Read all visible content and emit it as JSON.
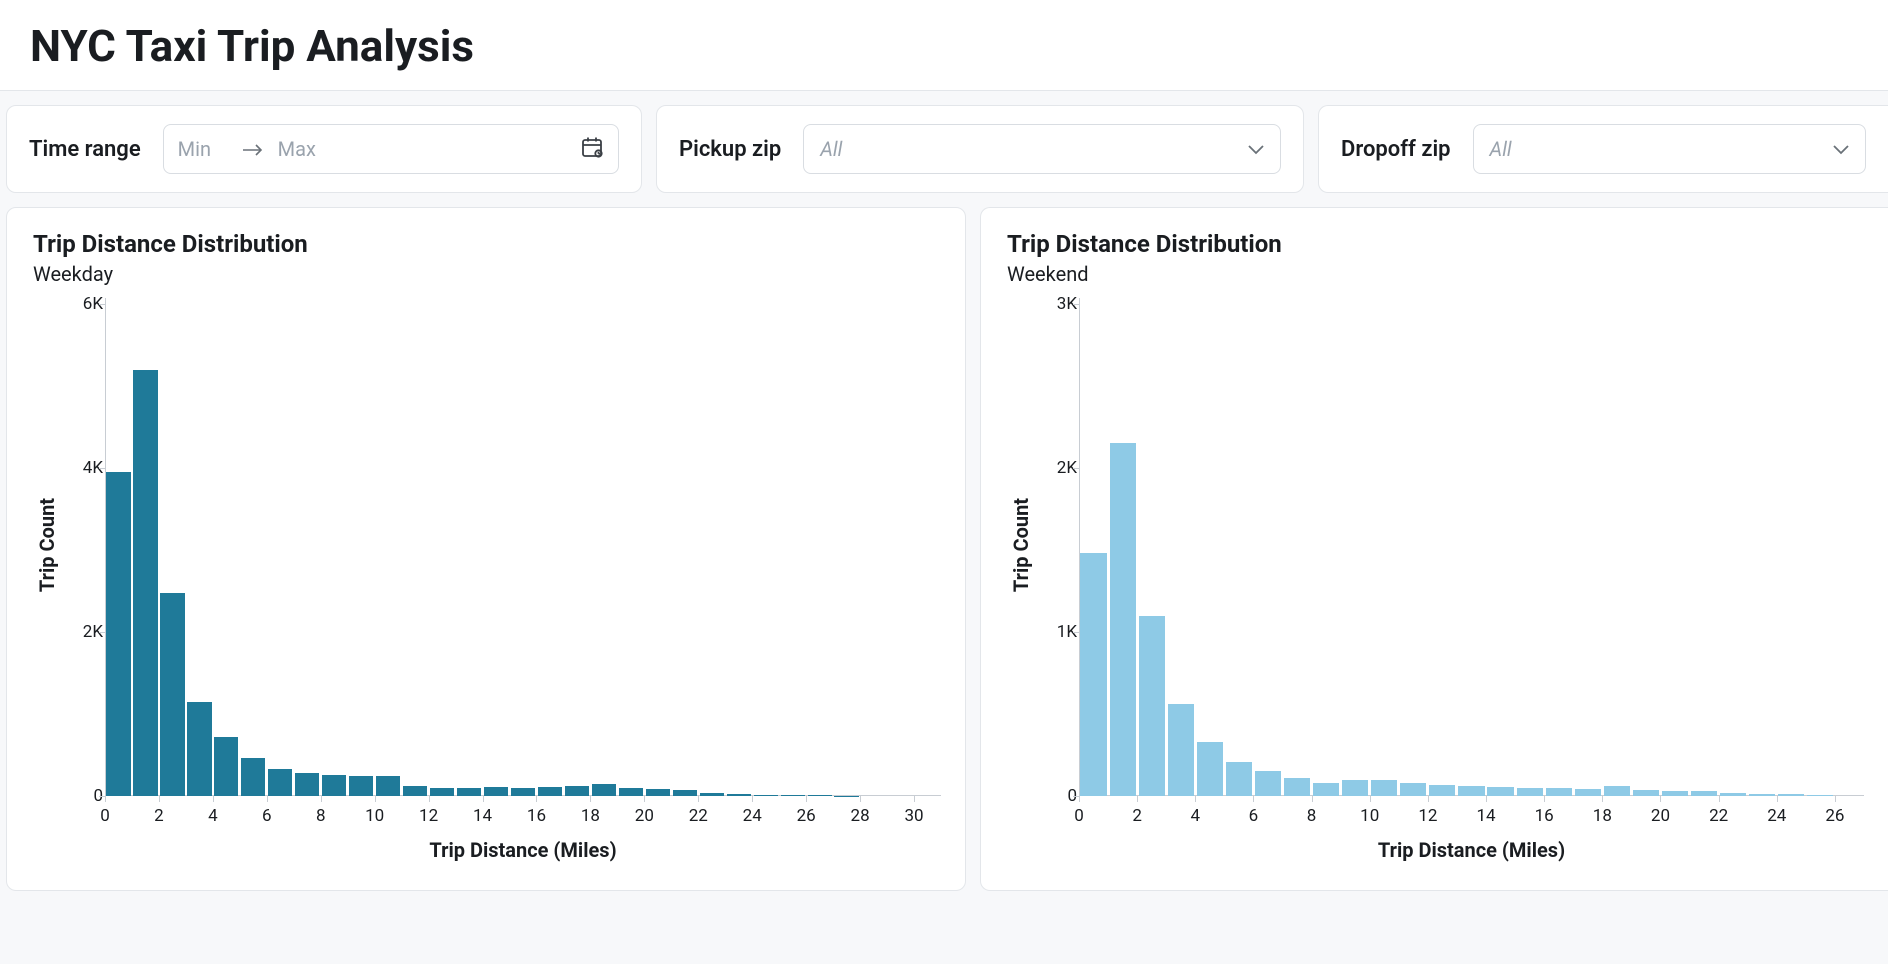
{
  "title": "NYC Taxi Trip Analysis",
  "filters": {
    "time_range": {
      "label": "Time range",
      "min_placeholder": "Min",
      "max_placeholder": "Max"
    },
    "pickup_zip": {
      "label": "Pickup zip",
      "placeholder": "All"
    },
    "dropoff_zip": {
      "label": "Dropoff zip",
      "placeholder": "All"
    }
  },
  "charts": [
    {
      "id": "weekday",
      "title": "Trip Distance Distribution",
      "subtitle": "Weekday",
      "type": "histogram",
      "bar_color": "#1f7a99",
      "x_bin_edges_start": 0,
      "x_bin_width": 1,
      "values": [
        3950,
        5200,
        2480,
        1150,
        720,
        460,
        330,
        280,
        260,
        240,
        240,
        120,
        100,
        100,
        110,
        100,
        110,
        120,
        150,
        100,
        90,
        70,
        40,
        20,
        10,
        10,
        10,
        5,
        0,
        0,
        0
      ],
      "xticks": [
        0,
        2,
        4,
        6,
        8,
        10,
        12,
        14,
        16,
        18,
        20,
        22,
        24,
        26,
        28,
        30
      ],
      "xlim": [
        0,
        31
      ],
      "ylim": [
        0,
        6000
      ],
      "yticks": [
        0,
        2000,
        4000,
        6000
      ],
      "ytick_labels": [
        "0",
        "2K",
        "4K",
        "6K"
      ],
      "xlabel": "Trip Distance (Miles)",
      "ylabel": "Trip Count",
      "axis_color": "#c8cdd3",
      "tick_fontsize": 17,
      "label_fontsize": 20,
      "bar_gap_ratio": 0.1
    },
    {
      "id": "weekend",
      "title": "Trip Distance Distribution",
      "subtitle": "Weekend",
      "type": "histogram",
      "bar_color": "#8ecae6",
      "x_bin_edges_start": 0,
      "x_bin_width": 1,
      "values": [
        1480,
        2150,
        1100,
        560,
        330,
        210,
        150,
        110,
        80,
        95,
        100,
        80,
        70,
        60,
        55,
        50,
        50,
        45,
        60,
        35,
        30,
        30,
        20,
        10,
        10,
        5,
        0
      ],
      "xticks": [
        0,
        2,
        4,
        6,
        8,
        10,
        12,
        14,
        16,
        18,
        20,
        22,
        24,
        26
      ],
      "xlim": [
        0,
        27
      ],
      "ylim": [
        0,
        3000
      ],
      "yticks": [
        0,
        1000,
        2000,
        3000
      ],
      "ytick_labels": [
        "0",
        "1K",
        "2K",
        "3K"
      ],
      "xlabel": "Trip Distance (Miles)",
      "ylabel": "Trip Count",
      "axis_color": "#c8cdd3",
      "tick_fontsize": 17,
      "label_fontsize": 20,
      "bar_gap_ratio": 0.1
    }
  ]
}
